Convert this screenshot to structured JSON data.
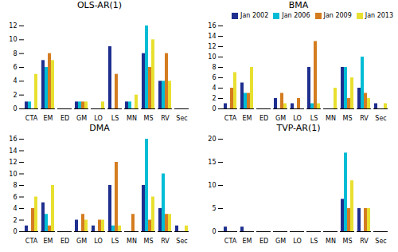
{
  "chart_data": [
    {
      "type": "bar",
      "title": "OLS-AR(1)",
      "categories": [
        "CTA",
        "EM",
        "ED",
        "GM",
        "LO",
        "LS",
        "MN",
        "MS",
        "RV",
        "Sec"
      ],
      "series": [
        {
          "name": "Jan 2002",
          "color": "#1f2f8f",
          "values": [
            1,
            7,
            0,
            1,
            0,
            9,
            1,
            8,
            4,
            0
          ]
        },
        {
          "name": "Jan 2006",
          "color": "#00bcd4",
          "values": [
            1,
            6,
            0,
            1,
            0,
            0,
            1,
            12,
            4,
            0
          ]
        },
        {
          "name": "Jan 2009",
          "color": "#d47c20",
          "values": [
            0,
            8,
            0,
            1,
            0,
            5,
            0,
            6,
            8,
            0
          ]
        },
        {
          "name": "Jan 2013",
          "color": "#e8e030",
          "values": [
            5,
            7,
            0,
            1,
            1,
            0,
            2,
            10,
            4,
            0
          ]
        }
      ],
      "ylim": [
        0,
        12
      ],
      "yticks": [
        0,
        2,
        4,
        6,
        8,
        10,
        12
      ]
    },
    {
      "type": "bar",
      "title": "BMA",
      "categories": [
        "CTA",
        "EM",
        "ED",
        "GM",
        "LO",
        "LS",
        "MN",
        "MS",
        "RV",
        "Sec"
      ],
      "series": [
        {
          "name": "Jan 2002",
          "color": "#1f2f8f",
          "values": [
            1,
            5,
            0,
            2,
            1,
            8,
            0,
            8,
            4,
            1
          ]
        },
        {
          "name": "Jan 2006",
          "color": "#00bcd4",
          "values": [
            0,
            3,
            0,
            0,
            0,
            1,
            0,
            8,
            10,
            0
          ]
        },
        {
          "name": "Jan 2009",
          "color": "#d47c20",
          "values": [
            4,
            3,
            0,
            3,
            2,
            13,
            0,
            2,
            3,
            0
          ]
        },
        {
          "name": "Jan 2013",
          "color": "#e8e030",
          "values": [
            7,
            8,
            0,
            1,
            0,
            1,
            4,
            6,
            2,
            1
          ]
        }
      ],
      "ylim": [
        0,
        16
      ],
      "yticks": [
        0,
        2,
        4,
        6,
        8,
        10,
        12,
        14,
        16
      ],
      "legend": "upper right"
    },
    {
      "type": "bar",
      "title": "DMA",
      "categories": [
        "CTA",
        "EM",
        "ED",
        "GM",
        "LO",
        "LS",
        "MN",
        "MS",
        "RV",
        "Sec"
      ],
      "series": [
        {
          "name": "Jan 2002",
          "color": "#1f2f8f",
          "values": [
            1,
            5,
            0,
            2,
            1,
            8,
            0,
            8,
            4,
            1
          ]
        },
        {
          "name": "Jan 2006",
          "color": "#00bcd4",
          "values": [
            0,
            3,
            0,
            0,
            0,
            1,
            0,
            16,
            10,
            0
          ]
        },
        {
          "name": "Jan 2009",
          "color": "#d47c20",
          "values": [
            4,
            1,
            0,
            3,
            2,
            12,
            3,
            2,
            3,
            0
          ]
        },
        {
          "name": "Jan 2013",
          "color": "#e8e030",
          "values": [
            6,
            8,
            0,
            2,
            2,
            1,
            0,
            6,
            3,
            1
          ]
        }
      ],
      "ylim": [
        0,
        16
      ],
      "yticks": [
        0,
        2,
        4,
        6,
        8,
        10,
        12,
        14,
        16
      ]
    },
    {
      "type": "bar",
      "title": "TVP-AR(1)",
      "categories": [
        "CTA",
        "EM",
        "ED",
        "GM",
        "LO",
        "LS",
        "MN",
        "MS",
        "RV",
        "Sec"
      ],
      "series": [
        {
          "name": "Jan 2002",
          "color": "#1f2f8f",
          "values": [
            1,
            1,
            0,
            0,
            0,
            0,
            0,
            7,
            5,
            0
          ]
        },
        {
          "name": "Jan 2006",
          "color": "#00bcd4",
          "values": [
            0,
            0,
            0,
            0,
            0,
            0,
            0,
            17,
            0,
            0
          ]
        },
        {
          "name": "Jan 2009",
          "color": "#d47c20",
          "values": [
            0,
            0,
            0,
            0,
            0,
            0,
            0,
            5,
            5,
            0
          ]
        },
        {
          "name": "Jan 2013",
          "color": "#e8e030",
          "values": [
            0,
            0,
            0,
            0,
            0,
            0,
            0,
            11,
            5,
            0
          ]
        }
      ],
      "ylim": [
        0,
        20
      ],
      "yticks": [
        0,
        5,
        10,
        15,
        20
      ]
    }
  ]
}
